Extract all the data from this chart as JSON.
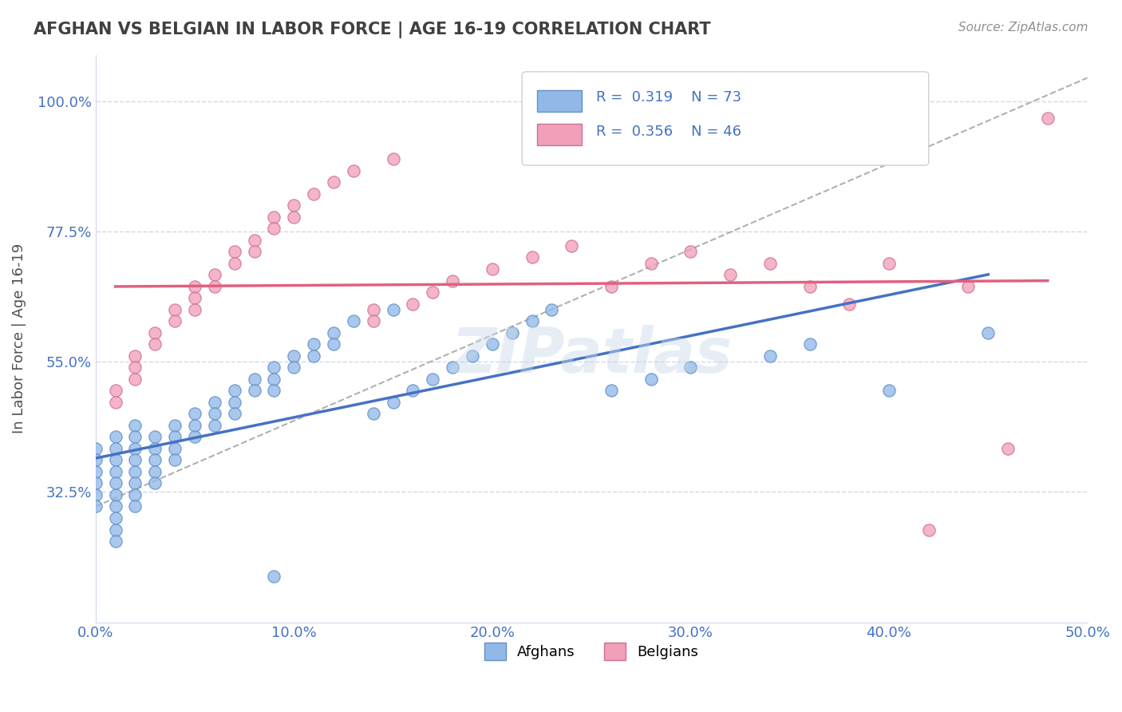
{
  "title": "AFGHAN VS BELGIAN IN LABOR FORCE | AGE 16-19 CORRELATION CHART",
  "source_text": "Source: ZipAtlas.com",
  "ylabel": "In Labor Force | Age 16-19",
  "xlim": [
    0.0,
    0.5
  ],
  "ylim": [
    0.1,
    1.08
  ],
  "xticks": [
    0.0,
    0.1,
    0.2,
    0.3,
    0.4,
    0.5
  ],
  "xticklabels": [
    "0.0%",
    "10.0%",
    "20.0%",
    "30.0%",
    "40.0%",
    "50.0%"
  ],
  "yticks": [
    0.325,
    0.55,
    0.775,
    1.0
  ],
  "yticklabels": [
    "32.5%",
    "55.0%",
    "77.5%",
    "100.0%"
  ],
  "afghan_color": "#92b8e8",
  "afghan_edge": "#6090c8",
  "belgian_color": "#f0a0b8",
  "belgian_edge": "#d07090",
  "trend_afghan_color": "#4472c4",
  "trend_belgian_color": "#e06080",
  "trend_dashed_color": "#b0b0b0",
  "R_afghan": 0.319,
  "N_afghan": 73,
  "R_belgian": 0.356,
  "N_belgian": 46,
  "legend_afghans": "Afghans",
  "legend_belgians": "Belgians",
  "watermark": "ZIPatlas",
  "background_color": "#ffffff",
  "grid_color": "#d0d8e8",
  "title_color": "#404040",
  "label_color": "#4472c4",
  "afghan_x": [
    0.0,
    0.0,
    0.0,
    0.0,
    0.0,
    0.0,
    0.01,
    0.01,
    0.01,
    0.01,
    0.01,
    0.01,
    0.01,
    0.01,
    0.01,
    0.01,
    0.02,
    0.02,
    0.02,
    0.02,
    0.02,
    0.02,
    0.02,
    0.02,
    0.03,
    0.03,
    0.03,
    0.03,
    0.03,
    0.04,
    0.04,
    0.04,
    0.04,
    0.05,
    0.05,
    0.05,
    0.06,
    0.06,
    0.06,
    0.07,
    0.07,
    0.07,
    0.08,
    0.08,
    0.09,
    0.09,
    0.09,
    0.09,
    0.1,
    0.1,
    0.11,
    0.11,
    0.12,
    0.12,
    0.13,
    0.14,
    0.15,
    0.15,
    0.16,
    0.17,
    0.18,
    0.19,
    0.2,
    0.21,
    0.22,
    0.23,
    0.26,
    0.28,
    0.3,
    0.34,
    0.36,
    0.4,
    0.45
  ],
  "afghan_y": [
    0.4,
    0.38,
    0.36,
    0.34,
    0.32,
    0.3,
    0.42,
    0.4,
    0.38,
    0.36,
    0.34,
    0.32,
    0.3,
    0.28,
    0.26,
    0.24,
    0.44,
    0.42,
    0.4,
    0.38,
    0.36,
    0.34,
    0.32,
    0.3,
    0.42,
    0.4,
    0.38,
    0.36,
    0.34,
    0.44,
    0.42,
    0.4,
    0.38,
    0.46,
    0.44,
    0.42,
    0.48,
    0.46,
    0.44,
    0.5,
    0.48,
    0.46,
    0.52,
    0.5,
    0.54,
    0.52,
    0.5,
    0.18,
    0.56,
    0.54,
    0.58,
    0.56,
    0.6,
    0.58,
    0.62,
    0.46,
    0.64,
    0.48,
    0.5,
    0.52,
    0.54,
    0.56,
    0.58,
    0.6,
    0.62,
    0.64,
    0.5,
    0.52,
    0.54,
    0.56,
    0.58,
    0.5,
    0.6
  ],
  "belgian_x": [
    0.01,
    0.01,
    0.02,
    0.02,
    0.02,
    0.03,
    0.03,
    0.04,
    0.04,
    0.05,
    0.05,
    0.05,
    0.06,
    0.06,
    0.07,
    0.07,
    0.08,
    0.08,
    0.09,
    0.09,
    0.1,
    0.1,
    0.11,
    0.12,
    0.13,
    0.14,
    0.14,
    0.15,
    0.16,
    0.17,
    0.18,
    0.2,
    0.22,
    0.24,
    0.26,
    0.28,
    0.3,
    0.32,
    0.34,
    0.36,
    0.38,
    0.4,
    0.42,
    0.44,
    0.46,
    0.48
  ],
  "belgian_y": [
    0.5,
    0.48,
    0.56,
    0.54,
    0.52,
    0.6,
    0.58,
    0.64,
    0.62,
    0.68,
    0.66,
    0.64,
    0.7,
    0.68,
    0.74,
    0.72,
    0.76,
    0.74,
    0.8,
    0.78,
    0.82,
    0.8,
    0.84,
    0.86,
    0.88,
    0.64,
    0.62,
    0.9,
    0.65,
    0.67,
    0.69,
    0.71,
    0.73,
    0.75,
    0.68,
    0.72,
    0.74,
    0.7,
    0.72,
    0.68,
    0.65,
    0.72,
    0.26,
    0.68,
    0.4,
    0.97
  ]
}
